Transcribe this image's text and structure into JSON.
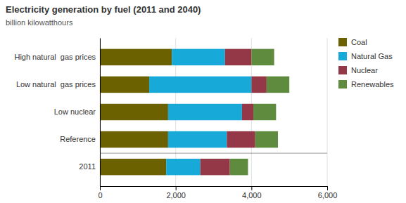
{
  "chart_data": {
    "type": "bar",
    "orientation": "horizontal",
    "stacked": true,
    "title": "Electricity generation by fuel (2011 and 2040)",
    "subtitle": "billion kilowatthours",
    "categories": [
      "High natural  gas prices",
      "Low natural  gas prices",
      "Low nuclear",
      "Reference",
      "2011"
    ],
    "series": [
      {
        "name": "Coal",
        "color": "#6b6100",
        "values": [
          1900,
          1300,
          1800,
          1800,
          1750
        ]
      },
      {
        "name": "Natural Gas",
        "color": "#17a9d8",
        "values": [
          1400,
          2700,
          1950,
          1550,
          900
        ]
      },
      {
        "name": "Nuclear",
        "color": "#943847",
        "values": [
          700,
          400,
          300,
          750,
          780
        ]
      },
      {
        "name": "Renewables",
        "color": "#5f8b3e",
        "values": [
          600,
          600,
          600,
          600,
          480
        ]
      }
    ],
    "xlim": [
      0,
      6000
    ],
    "xticks": [
      0,
      {
        "value": 2000,
        "label": "2,000"
      },
      {
        "value": 4000,
        "label": "4,000"
      },
      {
        "value": 6000,
        "label": "6,000"
      }
    ],
    "grid": true,
    "legend": "upper right"
  }
}
